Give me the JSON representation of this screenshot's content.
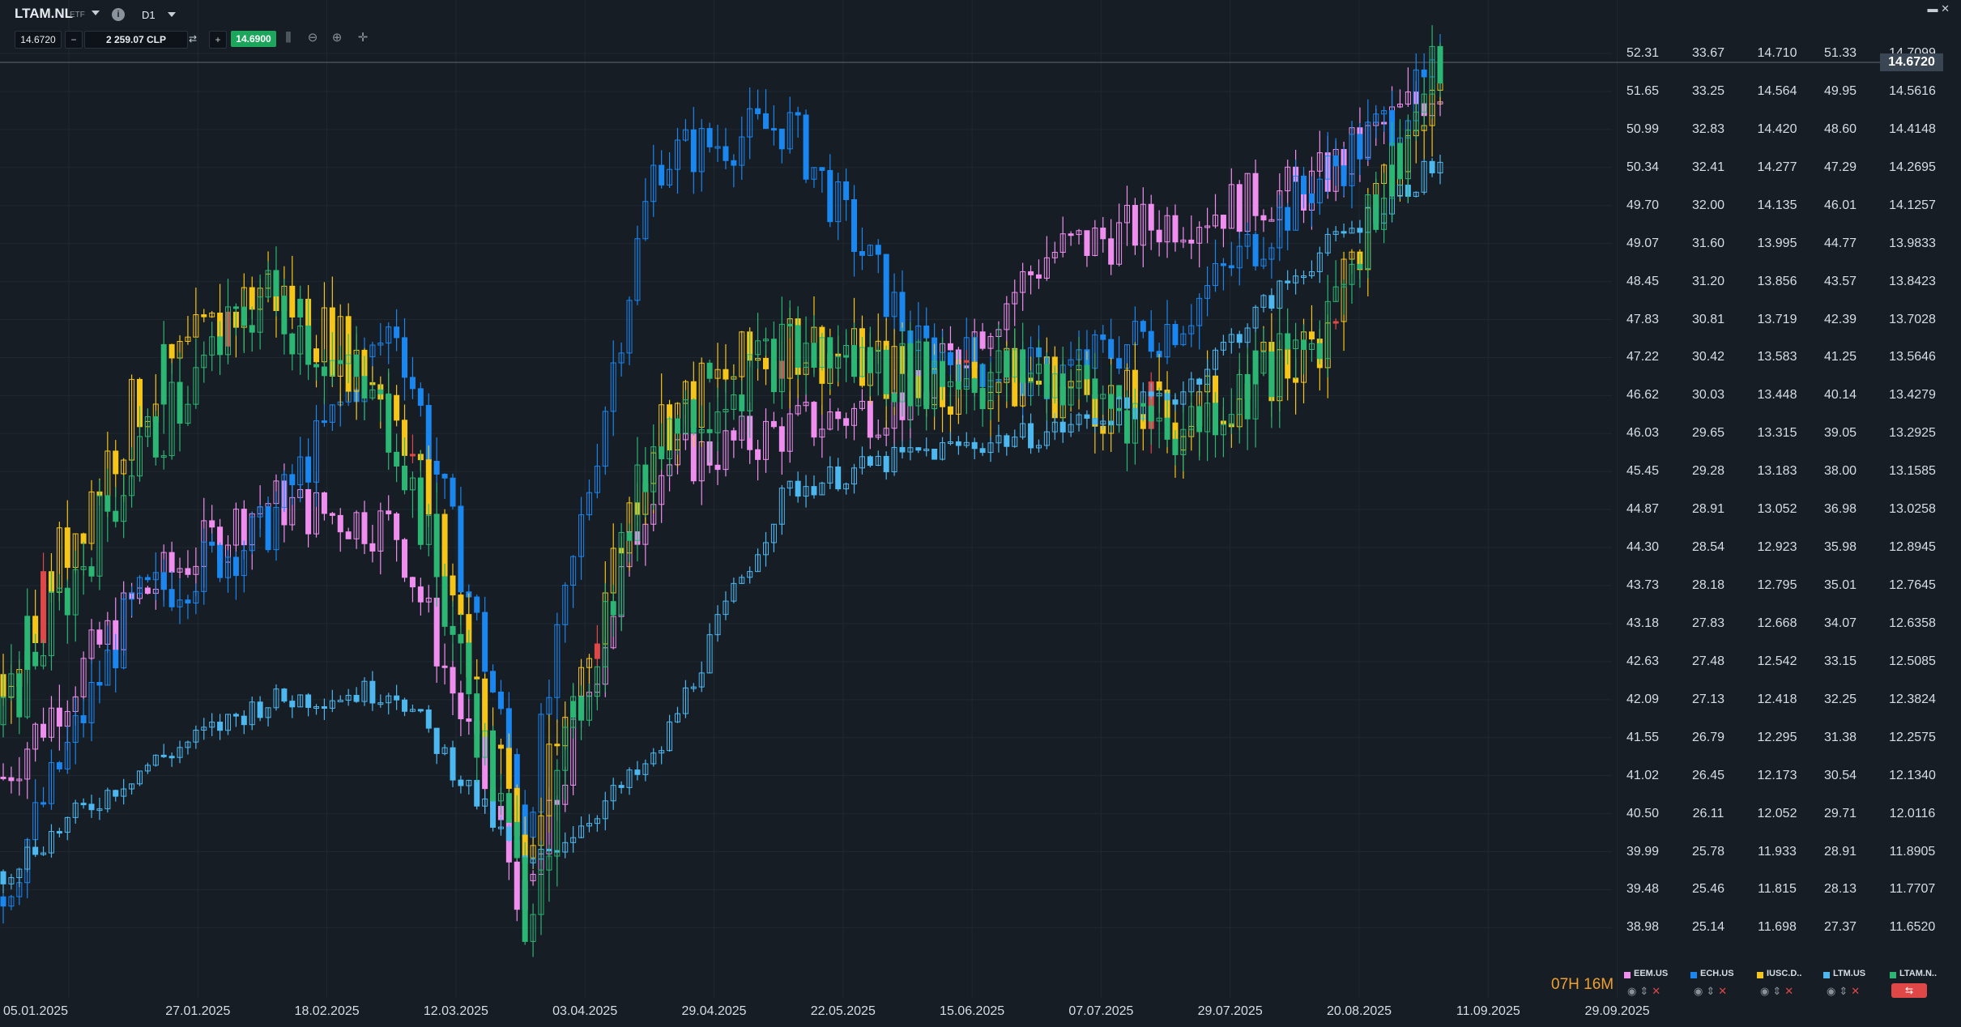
{
  "header": {
    "symbol": "LTAM.NL",
    "symbol_type": "ETF",
    "timeframe": "D1",
    "current_price": "14.6720",
    "amount": "2 259.07 CLP",
    "bid_price": "14.6900",
    "minus_label": "−",
    "plus_label": "+",
    "info_label": "i"
  },
  "icons": [
    "chevron-down-icon",
    "info-icon",
    "swap-icon",
    "bar-chart-icon",
    "zoom-out-icon",
    "zoom-in-icon",
    "crosshair-icon",
    "minimize-icon",
    "close-icon",
    "eye-icon",
    "sort-icon"
  ],
  "price_axis": {
    "columns": [
      {
        "instrument": "EEM.US",
        "values": [
          "52.31",
          "51.65",
          "50.99",
          "50.34",
          "49.70",
          "49.07",
          "48.45",
          "47.83",
          "47.22",
          "46.62",
          "46.03",
          "45.45",
          "44.87",
          "44.30",
          "43.73",
          "43.18",
          "42.63",
          "42.09",
          "41.55",
          "41.02",
          "40.50",
          "39.99",
          "39.48",
          "38.98"
        ]
      },
      {
        "instrument": "ECH.US",
        "values": [
          "33.67",
          "33.25",
          "32.83",
          "32.41",
          "32.00",
          "31.60",
          "31.20",
          "30.81",
          "30.42",
          "30.03",
          "29.65",
          "29.28",
          "28.91",
          "28.54",
          "28.18",
          "27.83",
          "27.48",
          "27.13",
          "26.79",
          "26.45",
          "26.11",
          "25.78",
          "25.46",
          "25.14"
        ]
      },
      {
        "instrument": "IUSC.D..",
        "values": [
          "14.710",
          "14.564",
          "14.420",
          "14.277",
          "14.135",
          "13.995",
          "13.856",
          "13.719",
          "13.583",
          "13.448",
          "13.315",
          "13.183",
          "13.052",
          "12.923",
          "12.795",
          "12.668",
          "12.542",
          "12.418",
          "12.295",
          "12.173",
          "12.052",
          "11.933",
          "11.815",
          "11.698"
        ]
      },
      {
        "instrument": "LTM.US",
        "values": [
          "51.33",
          "49.95",
          "48.60",
          "47.29",
          "46.01",
          "44.77",
          "43.57",
          "42.39",
          "41.25",
          "40.14",
          "39.05",
          "38.00",
          "36.98",
          "35.98",
          "35.01",
          "34.07",
          "33.15",
          "32.25",
          "31.38",
          "30.54",
          "29.71",
          "28.91",
          "28.13",
          "27.37"
        ]
      },
      {
        "instrument": "LTAM.N..",
        "values": [
          "14.7099",
          "14.5616",
          "14.4148",
          "14.2695",
          "14.1257",
          "13.9833",
          "13.8423",
          "13.7028",
          "13.5646",
          "13.4279",
          "13.2925",
          "13.1585",
          "13.0258",
          "12.8945",
          "12.7645",
          "12.6358",
          "12.5085",
          "12.3824",
          "12.2575",
          "12.1340",
          "12.0116",
          "11.8905",
          "11.7707",
          "11.6520"
        ]
      }
    ],
    "current_price_tag": "14.6720"
  },
  "time_axis": [
    "05.01.2025",
    "27.01.2025",
    "18.02.2025",
    "12.03.2025",
    "03.04.2025",
    "29.04.2025",
    "22.05.2025",
    "15.06.2025",
    "07.07.2025",
    "29.07.2025",
    "20.08.2025",
    "11.09.2025",
    "29.09.2025"
  ],
  "countdown": {
    "hours": "07H",
    "minutes": "16M"
  },
  "legend": [
    {
      "name": "EEM.US",
      "color": "#f08ef0"
    },
    {
      "name": "ECH.US",
      "color": "#1a86f0"
    },
    {
      "name": "IUSC.D..",
      "color": "#f5c518"
    },
    {
      "name": "LTM.US",
      "color": "#4db8f0"
    },
    {
      "name": "LTAM.N..",
      "color": "#2bb673"
    }
  ],
  "colors": {
    "background": "#161d25",
    "grid": "#222b35",
    "up_green": "#2bb673",
    "down_red": "#e04848"
  },
  "chart_data": {
    "type": "line",
    "note_x": [
      "05.01.2025",
      "27.01.2025",
      "18.02.2025",
      "12.03.2025",
      "03.04.2025",
      "29.04.2025",
      "22.05.2025",
      "15.06.2025",
      "07.07.2025",
      "29.07.2025",
      "20.08.2025",
      "11.09.2025"
    ],
    "series": [
      {
        "name": "EEM.US",
        "color": "#f08ef0",
        "values": [
          41.0,
          43.5,
          45.0,
          44.6,
          39.2,
          45.5,
          46.1,
          46.6,
          48.9,
          49.5,
          50.0,
          51.8
        ]
      },
      {
        "name": "ECH.US",
        "color": "#1a86f0",
        "values": [
          25.4,
          28.0,
          28.7,
          30.8,
          26.0,
          32.5,
          32.9,
          30.5,
          30.2,
          30.8,
          32.2,
          33.4
        ]
      },
      {
        "name": "IUSC.D..",
        "color": "#f5c518",
        "values": [
          12.5,
          13.4,
          13.85,
          13.45,
          11.9,
          13.35,
          13.65,
          13.5,
          13.5,
          13.35,
          13.6,
          14.6
        ]
      },
      {
        "name": "LTM.US",
        "color": "#4db8f0",
        "values": [
          28.5,
          30.6,
          32.2,
          32.5,
          28.5,
          30.9,
          37.5,
          38.5,
          39.1,
          40.2,
          44.2,
          47.5
        ]
      },
      {
        "name": "LTAM.N..",
        "color": "#2bb673",
        "values": [
          12.3,
          13.2,
          13.8,
          13.3,
          11.7,
          13.3,
          13.6,
          13.5,
          13.5,
          13.3,
          13.6,
          14.67
        ]
      }
    ]
  }
}
